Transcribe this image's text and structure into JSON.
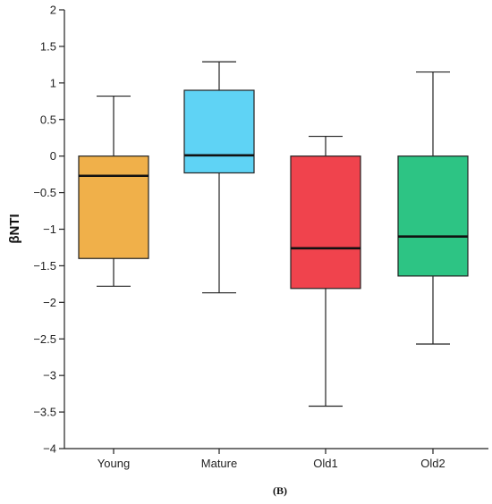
{
  "chart_data": {
    "type": "box",
    "ylabel": "βNTI",
    "ylim": [
      -4,
      2
    ],
    "yticks": [
      {
        "value": 2,
        "label": "2"
      },
      {
        "value": 1.5,
        "label": "1.5"
      },
      {
        "value": 1,
        "label": "1"
      },
      {
        "value": 0.5,
        "label": "0.5"
      },
      {
        "value": 0,
        "label": "0"
      },
      {
        "value": -0.5,
        "label": "−0.5"
      },
      {
        "value": -1,
        "label": "−1"
      },
      {
        "value": -1.5,
        "label": "−1.5"
      },
      {
        "value": -2,
        "label": "−2"
      },
      {
        "value": -2.5,
        "label": "−2.5"
      },
      {
        "value": -3,
        "label": "−3"
      },
      {
        "value": -3.5,
        "label": "−3.5"
      },
      {
        "value": -4,
        "label": "−4"
      }
    ],
    "categories": [
      "Young",
      "Mature",
      "Old1",
      "Old2"
    ],
    "boxes": [
      {
        "name": "Young",
        "min": -1.78,
        "q1": -1.4,
        "median": -0.27,
        "q3": 0.0,
        "max": 0.82,
        "color": "#F0B04A"
      },
      {
        "name": "Mature",
        "min": -1.87,
        "q1": -0.23,
        "median": 0.01,
        "q3": 0.9,
        "max": 1.29,
        "color": "#5FD3F5"
      },
      {
        "name": "Old1",
        "min": -3.42,
        "q1": -1.81,
        "median": -1.26,
        "q3": 0.0,
        "max": 0.27,
        "color": "#F0434D"
      },
      {
        "name": "Old2",
        "min": -2.57,
        "q1": -1.64,
        "median": -1.1,
        "q3": 0.0,
        "max": 1.15,
        "color": "#2DC484"
      }
    ],
    "grid": false,
    "panel_label": "(B)"
  }
}
